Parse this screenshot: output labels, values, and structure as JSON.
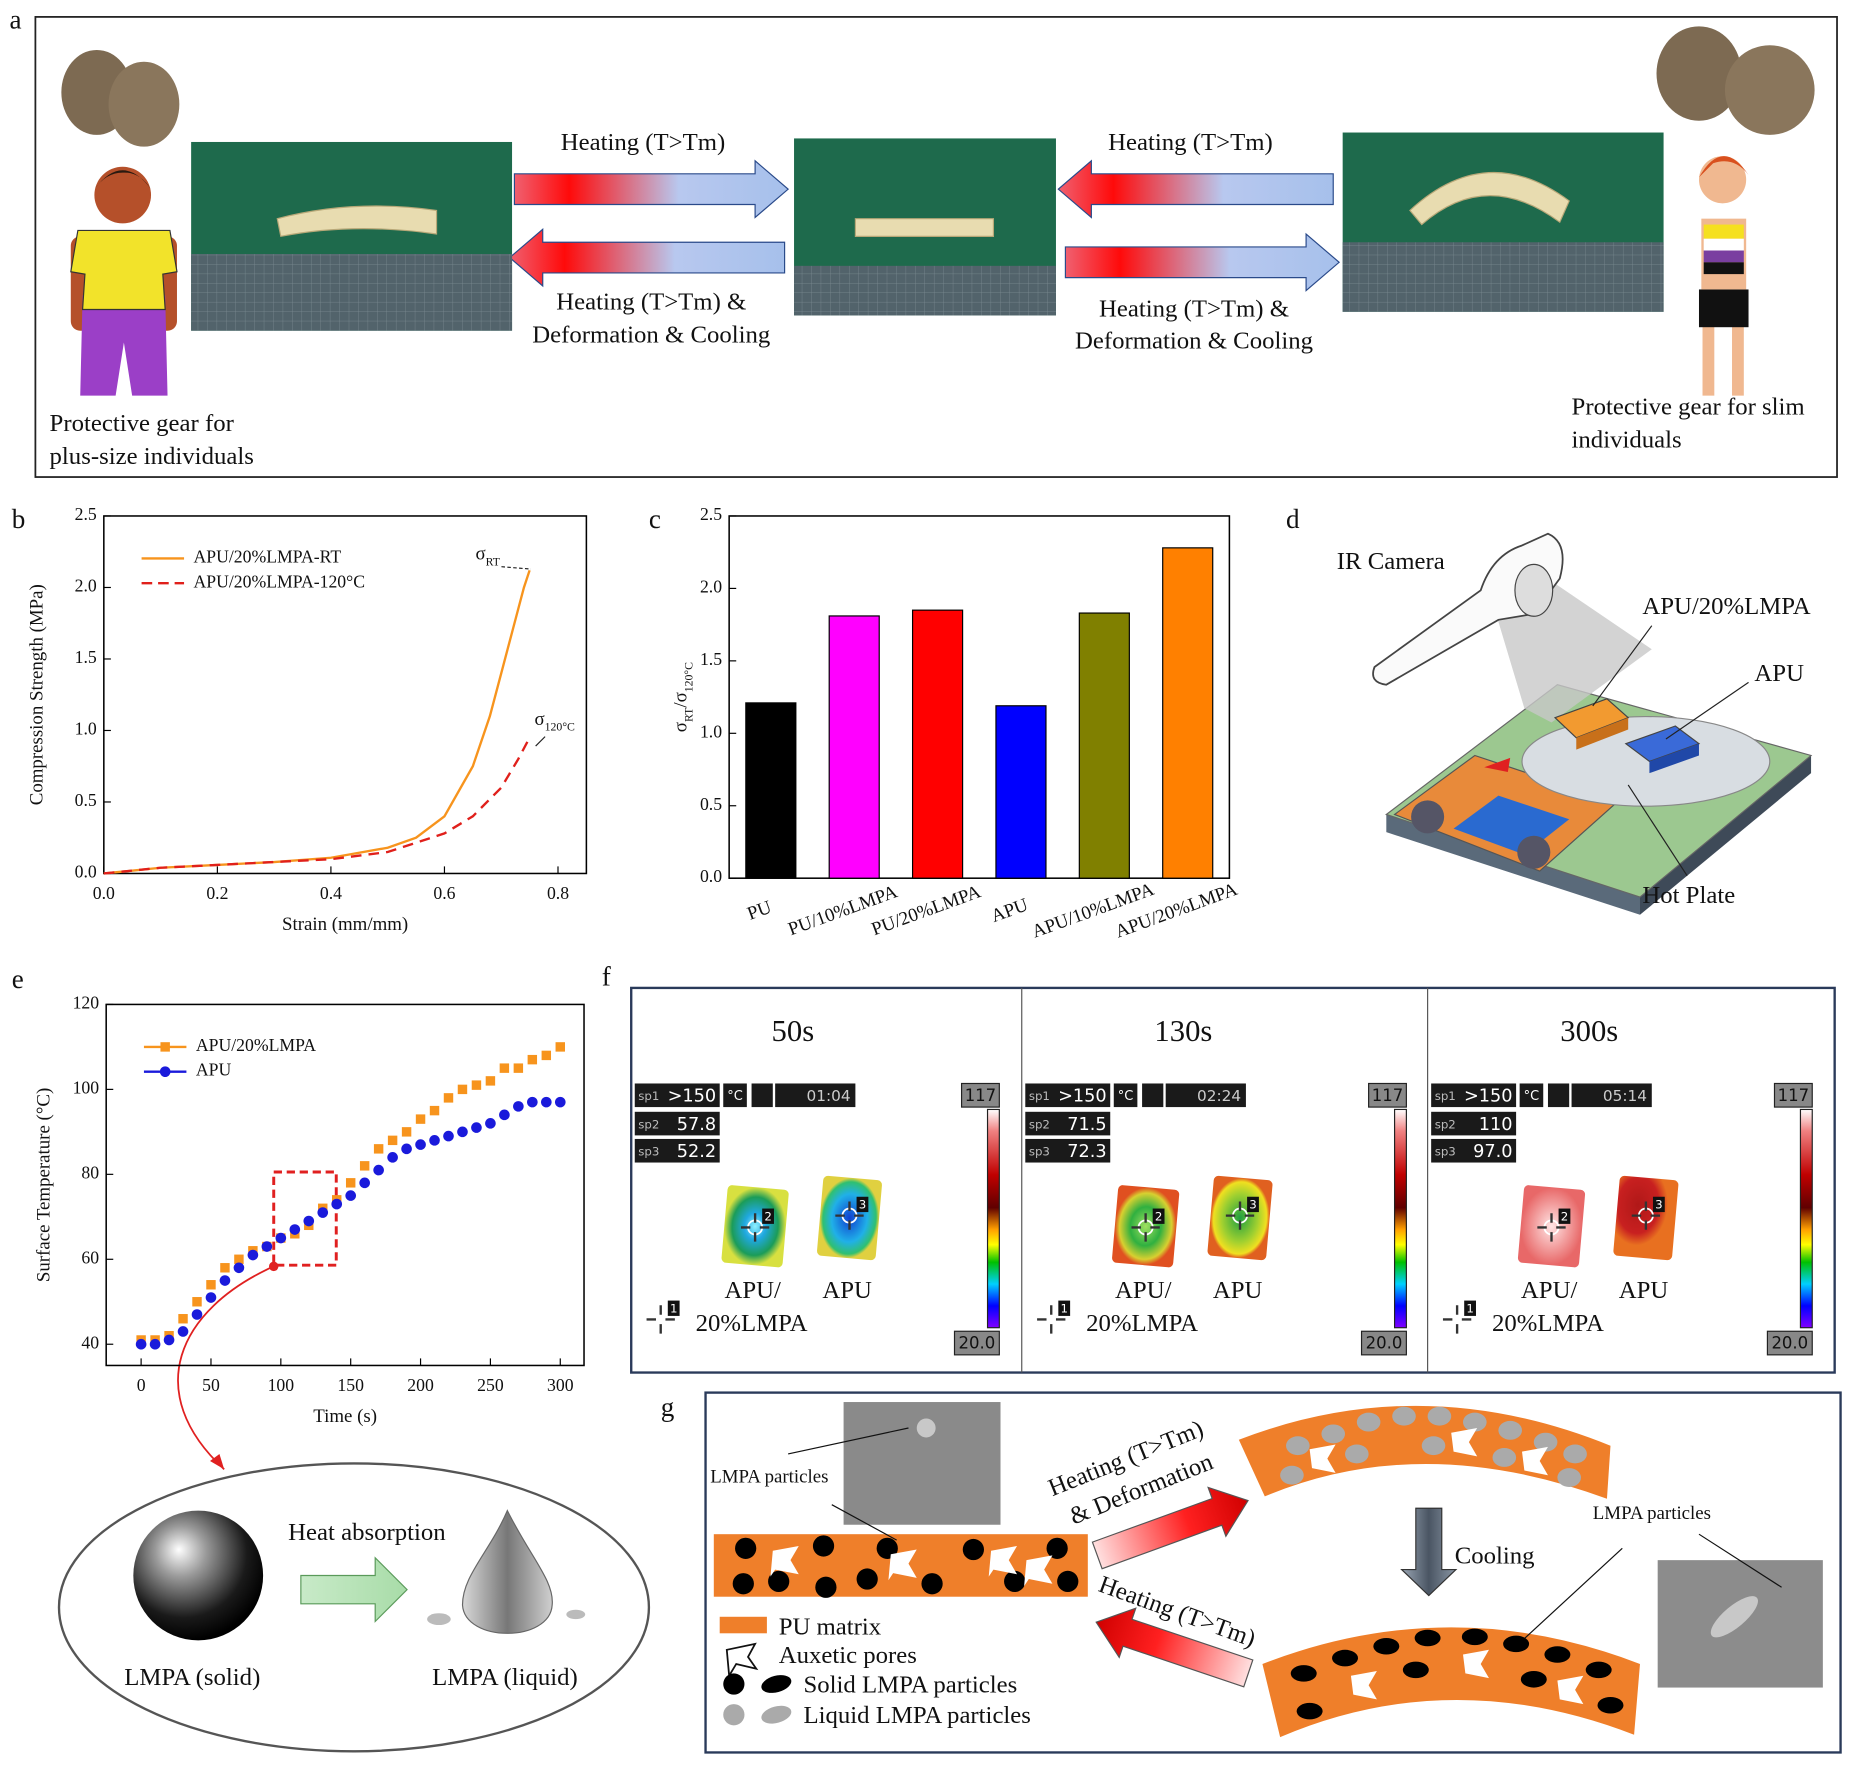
{
  "panel_a": {
    "label": "a",
    "top_arrow_left": "Heating (T>Tm)",
    "bottom_arrow_left": [
      "Heating (T>Tm) &",
      "Deformation & Cooling"
    ],
    "top_arrow_right": "Heating (T>Tm)",
    "bottom_arrow_right": [
      "Heating (T>Tm) &",
      "Deformation & Cooling"
    ],
    "caption_left": [
      "Protective gear for",
      "plus-size individuals"
    ],
    "caption_right": [
      "Protective gear for slim",
      "individuals"
    ]
  },
  "chart_data": [
    {
      "type": "line",
      "panel_label": "b",
      "xlabel": "Strain (mm/mm)",
      "ylabel": "Compression Strength (MPa)",
      "xlim": [
        0,
        0.85
      ],
      "ylim": [
        0,
        2.5
      ],
      "xticks": [
        {
          "value": 0,
          "label": "0.0"
        },
        0.2,
        0.4,
        0.6,
        0.8
      ],
      "yticks": [
        {
          "value": 0,
          "label": "0.0"
        },
        0.5,
        {
          "value": 1,
          "label": "1.0"
        },
        1.5,
        {
          "value": 2,
          "label": "2.0"
        },
        2.5
      ],
      "annotations": [
        {
          "symbol": "σ",
          "subscript": "RT"
        },
        {
          "symbol": "σ",
          "subscript": "120°C"
        }
      ],
      "series": [
        {
          "name": "APU/20%LMPA-RT",
          "color": "#f7941d",
          "style": "solid",
          "x": [
            0,
            0.1,
            0.2,
            0.3,
            0.4,
            0.5,
            0.55,
            0.6,
            0.65,
            0.68,
            0.7,
            0.72,
            0.74,
            0.75
          ],
          "values": [
            0,
            0.04,
            0.06,
            0.08,
            0.11,
            0.18,
            0.25,
            0.4,
            0.75,
            1.1,
            1.4,
            1.7,
            2.0,
            2.12
          ]
        },
        {
          "name": "APU/20%LMPA-120°C",
          "color": "#e0201b",
          "style": "dashed",
          "x": [
            0,
            0.1,
            0.2,
            0.3,
            0.4,
            0.5,
            0.6,
            0.65,
            0.7,
            0.73,
            0.75
          ],
          "values": [
            0,
            0.04,
            0.06,
            0.08,
            0.1,
            0.15,
            0.28,
            0.4,
            0.6,
            0.8,
            0.95
          ]
        }
      ]
    },
    {
      "type": "bar",
      "panel_label": "c",
      "ylabel_parts": [
        "σ",
        "RT",
        "/σ",
        "120°C"
      ],
      "categories": [
        "PU",
        "PU/10%LMPA",
        "PU/20%LMPA",
        "APU",
        "APU/10%LMPA",
        "APU/20%LMPA"
      ],
      "values": [
        1.21,
        1.81,
        1.85,
        1.19,
        1.83,
        2.28
      ],
      "colors": [
        "#000000",
        "#ff00ff",
        "#ff0000",
        "#0000ff",
        "#808000",
        "#ff8000"
      ],
      "ylim": [
        0,
        2.5
      ],
      "yticks": [
        {
          "value": 0,
          "label": "0.0"
        },
        0.5,
        {
          "value": 1,
          "label": "1.0"
        },
        1.5,
        {
          "value": 2,
          "label": "2.0"
        },
        2.5
      ]
    },
    {
      "type": "line",
      "panel_label": "e",
      "xlabel": "Time (s)",
      "ylabel": "Surface Temperature (°C)",
      "xlim": [
        -25,
        317
      ],
      "ylim": [
        35,
        120
      ],
      "xticks": [
        0,
        50,
        100,
        150,
        200,
        250,
        300
      ],
      "yticks": [
        40,
        60,
        80,
        100,
        120
      ],
      "x": [
        0,
        10,
        20,
        30,
        40,
        50,
        60,
        70,
        80,
        90,
        100,
        110,
        120,
        130,
        140,
        150,
        160,
        170,
        180,
        190,
        200,
        210,
        220,
        230,
        240,
        250,
        260,
        270,
        280,
        290,
        300
      ],
      "series": [
        {
          "name": "APU/20%LMPA",
          "color": "#f7941d",
          "marker": "square",
          "values": [
            41,
            41,
            42,
            46,
            50,
            54,
            58,
            60,
            62,
            63,
            65,
            66,
            68,
            72,
            74,
            78,
            82,
            86,
            88,
            90,
            93,
            95,
            98,
            100,
            101,
            102,
            105,
            105,
            107,
            108,
            110
          ]
        },
        {
          "name": "APU",
          "color": "#1a1adb",
          "marker": "circle",
          "values": [
            40,
            40,
            41,
            43,
            47,
            51,
            55,
            58,
            61,
            63,
            65,
            67,
            69,
            71,
            73,
            75,
            78,
            81,
            84,
            86,
            87,
            88,
            89,
            90,
            91,
            92,
            94,
            96,
            97,
            97,
            97
          ]
        }
      ]
    }
  ],
  "panel_d": {
    "label": "d",
    "camera": "IR Camera",
    "sample_a": "APU/20%LMPA",
    "sample_b": "APU",
    "plate": "Hot Plate"
  },
  "panel_e_inset": {
    "process": "Heat absorption",
    "solid": "LMPA (solid)",
    "liquid": "LMPA (liquid)"
  },
  "panel_f": {
    "label": "f",
    "readout_names": [
      "sp1",
      "sp2",
      "sp3"
    ],
    "marker_ids": [
      "1",
      "2",
      "3"
    ],
    "sample_labels": [
      "APU/",
      "20%LMPA",
      "APU"
    ],
    "frames": [
      {
        "time": "50s",
        "sp1": ">150",
        "unit": "°C",
        "clock": "01:04",
        "sp2": "57.8",
        "sp3": "52.2",
        "scale_max": "117",
        "scale_min": "20.0"
      },
      {
        "time": "130s",
        "sp1": ">150",
        "unit": "°C",
        "clock": "02:24",
        "sp2": "71.5",
        "sp3": "72.3",
        "scale_max": "117",
        "scale_min": "20.0"
      },
      {
        "time": "300s",
        "sp1": ">150",
        "unit": "°C",
        "clock": "05:14",
        "sp2": "110",
        "sp3": "97.0",
        "scale_max": "117",
        "scale_min": "20.0"
      }
    ]
  },
  "panel_g": {
    "label": "g",
    "sem_label_left": "LMPA particles",
    "sem_label_right": "LMPA particles",
    "arrow_up": [
      "Heating (T>Tm)",
      "& Deformation"
    ],
    "arrow_down": "Cooling",
    "arrow_back": "Heating (T>Tm)",
    "legend": [
      "PU matrix",
      "Auxetic pores",
      "Solid LMPA particles",
      "Liquid LMPA particles"
    ]
  }
}
